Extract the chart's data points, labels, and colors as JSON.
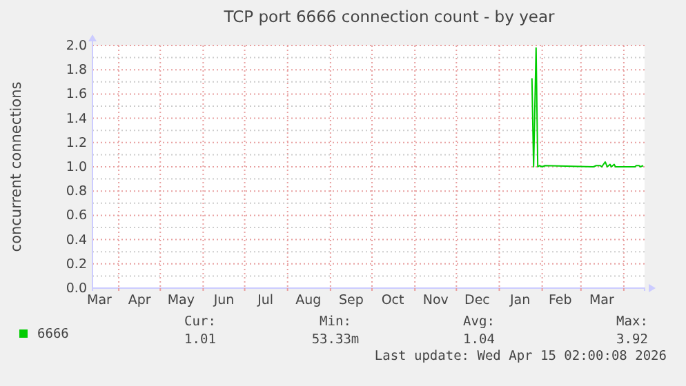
{
  "chart_data": {
    "type": "line",
    "title": "TCP port 6666 connection count - by year",
    "ylabel": "concurrent connections",
    "xlim": [
      "2025-03-13",
      "2026-04-16"
    ],
    "xticks": [
      {
        "value": "2025-03-18",
        "label": "Mar"
      },
      {
        "value": "2025-04-01",
        "label": null
      },
      {
        "value": "2025-04-16",
        "label": "Apr"
      },
      {
        "value": "2025-05-01",
        "label": null
      },
      {
        "value": "2025-05-16",
        "label": "May"
      },
      {
        "value": "2025-06-01",
        "label": null
      },
      {
        "value": "2025-06-16",
        "label": "Jun"
      },
      {
        "value": "2025-07-01",
        "label": null
      },
      {
        "value": "2025-07-16",
        "label": "Jul"
      },
      {
        "value": "2025-08-01",
        "label": null
      },
      {
        "value": "2025-08-16",
        "label": "Aug"
      },
      {
        "value": "2025-09-01",
        "label": null
      },
      {
        "value": "2025-09-16",
        "label": "Sep"
      },
      {
        "value": "2025-10-01",
        "label": null
      },
      {
        "value": "2025-10-16",
        "label": "Oct"
      },
      {
        "value": "2025-11-01",
        "label": null
      },
      {
        "value": "2025-11-16",
        "label": "Nov"
      },
      {
        "value": "2025-12-01",
        "label": null
      },
      {
        "value": "2025-12-16",
        "label": "Dec"
      },
      {
        "value": "2026-01-01",
        "label": null
      },
      {
        "value": "2026-01-16",
        "label": "Jan"
      },
      {
        "value": "2026-02-01",
        "label": null
      },
      {
        "value": "2026-02-14",
        "label": "Feb"
      },
      {
        "value": "2026-03-01",
        "label": null
      },
      {
        "value": "2026-03-16",
        "label": "Mar"
      },
      {
        "value": "2026-04-01",
        "label": null
      }
    ],
    "ylim": [
      0,
      2.0
    ],
    "yticks": [
      {
        "value": 0,
        "label": "0.0"
      },
      {
        "value": 0.1,
        "label": null
      },
      {
        "value": 0.2,
        "label": "0.2"
      },
      {
        "value": 0.3,
        "label": null
      },
      {
        "value": 0.4,
        "label": "0.4"
      },
      {
        "value": 0.5,
        "label": null
      },
      {
        "value": 0.6,
        "label": "0.6"
      },
      {
        "value": 0.7,
        "label": null
      },
      {
        "value": 0.8,
        "label": "0.8"
      },
      {
        "value": 0.9,
        "label": null
      },
      {
        "value": 1.0,
        "label": "1.0"
      },
      {
        "value": 1.1,
        "label": null
      },
      {
        "value": 1.2,
        "label": "1.2"
      },
      {
        "value": 1.3,
        "label": null
      },
      {
        "value": 1.4,
        "label": "1.4"
      },
      {
        "value": 1.5,
        "label": null
      },
      {
        "value": 1.6,
        "label": "1.6"
      },
      {
        "value": 1.7,
        "label": null
      },
      {
        "value": 1.8,
        "label": "1.8"
      },
      {
        "value": 1.9,
        "label": null
      },
      {
        "value": 2.0,
        "label": "2.0"
      }
    ],
    "grid": true,
    "legend": "bottom left",
    "x": [
      "2026-01-24T14:00",
      "2026-01-25T19:00",
      "2026-01-27T14:00",
      "2026-01-28T19:00",
      "2026-01-30",
      "2026-02-01",
      "2026-02-03",
      "2026-03-10",
      "2026-03-12",
      "2026-03-15",
      "2026-03-16",
      "2026-03-18T14:00",
      "2026-03-20",
      "2026-03-22",
      "2026-03-23",
      "2026-03-25",
      "2026-03-26",
      "2026-04-09",
      "2026-04-10",
      "2026-04-12",
      "2026-04-13",
      "2026-04-15"
    ],
    "series": [
      {
        "name": "6666",
        "color": "#00cc00",
        "values": [
          1.73,
          1.0,
          1.98,
          1.0,
          1.01,
          1.0,
          1.01,
          1.0,
          1.01,
          1.01,
          1.0,
          1.04,
          1.0,
          1.02,
          1.0,
          1.02,
          1.0,
          1.0,
          1.01,
          1.01,
          1.0,
          1.01
        ]
      }
    ],
    "annotations": [
      "Cur:",
      "1.01",
      "Min:",
      "53.33m",
      "Avg:",
      "1.04",
      "Max:",
      "3.92",
      "Last update: Wed Apr 15 02:00:08 2026"
    ]
  }
}
